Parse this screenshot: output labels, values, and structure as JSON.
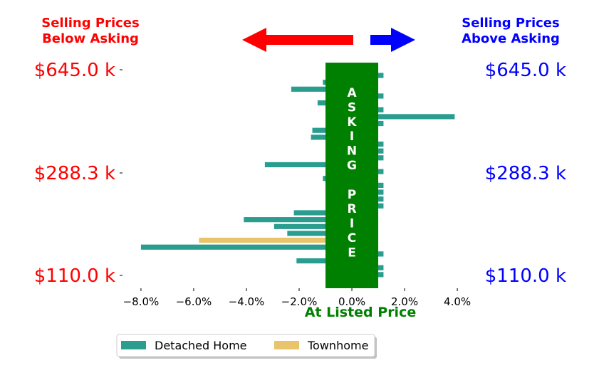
{
  "chart_data": {
    "type": "bar",
    "orientation": "horizontal",
    "header_left_lines": [
      "Selling Prices",
      "Below Asking"
    ],
    "header_right_lines": [
      "Selling Prices",
      "Above Asking"
    ],
    "y_tick_labels": [
      "$645.0 k",
      "$288.3 k",
      "$110.0 k"
    ],
    "x_tick_labels": [
      "−8.0%",
      "−6.0%",
      "−4.0%",
      "−2.0%",
      "0.0%",
      "2.0%",
      "4.0%"
    ],
    "x_ticks": [
      -8,
      -6,
      -4,
      -2,
      0,
      2,
      4
    ],
    "xlim": [
      -8.7,
      4.7
    ],
    "xlabel": "At Listed Price",
    "asking_band_letters": [
      "A",
      "S",
      "K",
      "I",
      "N",
      "G",
      "",
      "P",
      "R",
      "I",
      "C",
      "E"
    ],
    "asking_band_range": [
      -1.0,
      1.0
    ],
    "legend_placement": "bottom-center",
    "colors": {
      "detached": "#2a9d8f",
      "townhome": "#e9c46a",
      "asking_band": "#008000",
      "arrow_below": "#ff0000",
      "arrow_above": "#0000ff",
      "label_below": "#ff0000",
      "label_above": "#0000ff"
    },
    "series": [
      {
        "name": "Detached Home",
        "color_key": "detached"
      },
      {
        "name": "Townhome",
        "color_key": "townhome"
      }
    ],
    "bars": [
      {
        "value": 1.2,
        "series": 0
      },
      {
        "value": -1.1,
        "series": 0
      },
      {
        "value": -2.3,
        "series": 0
      },
      {
        "value": 1.2,
        "series": 0
      },
      {
        "value": -1.3,
        "series": 0
      },
      {
        "value": 1.2,
        "series": 0
      },
      {
        "value": 3.9,
        "series": 0
      },
      {
        "value": 1.2,
        "series": 0
      },
      {
        "value": -1.5,
        "series": 0
      },
      {
        "value": -1.55,
        "series": 0
      },
      {
        "value": 1.2,
        "series": 0
      },
      {
        "value": 1.2,
        "series": 0
      },
      {
        "value": 1.2,
        "series": 0
      },
      {
        "value": -3.3,
        "series": 0
      },
      {
        "value": 1.2,
        "series": 0
      },
      {
        "value": -1.1,
        "series": 0
      },
      {
        "value": 1.2,
        "series": 0
      },
      {
        "value": 1.2,
        "series": 0
      },
      {
        "value": 1.2,
        "series": 0
      },
      {
        "value": 1.2,
        "series": 0
      },
      {
        "value": -2.2,
        "series": 0
      },
      {
        "value": -4.1,
        "series": 0
      },
      {
        "value": -2.95,
        "series": 0
      },
      {
        "value": -2.45,
        "series": 0
      },
      {
        "value": -5.8,
        "series": 1
      },
      {
        "value": -8.0,
        "series": 0
      },
      {
        "value": 1.2,
        "series": 0
      },
      {
        "value": -2.1,
        "series": 0
      },
      {
        "value": 1.2,
        "series": 0
      },
      {
        "value": 1.2,
        "series": 0
      }
    ]
  }
}
